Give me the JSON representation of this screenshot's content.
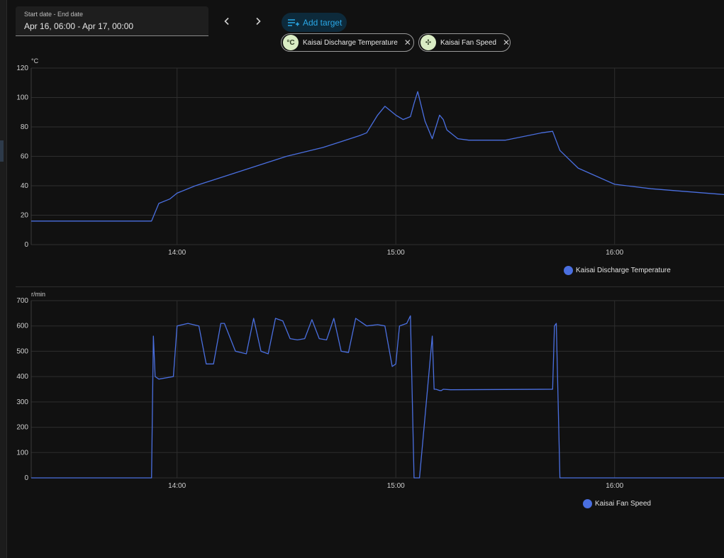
{
  "date_range": {
    "label": "Start date - End date",
    "value": "Apr 16, 06:00 - Apr 17, 00:00"
  },
  "toolbar": {
    "prev_icon": "chevron-left-icon",
    "next_icon": "chevron-right-icon",
    "add_target_label": "Add target"
  },
  "targets": [
    {
      "icon": "thermometer-celsius-icon",
      "icon_text": "°C",
      "label": "Kaisai Discharge Temperature"
    },
    {
      "icon": "fan-icon",
      "icon_text": "✣",
      "label": "Kaisai Fan Speed"
    }
  ],
  "colors": {
    "series": "#4a6fe0",
    "accent": "#2aa7e6",
    "chip_icon_bg": "#d9ecc4"
  },
  "chart_data": [
    {
      "type": "line",
      "unit": "°C",
      "ylim": [
        0,
        120
      ],
      "yticks": [
        0,
        20,
        40,
        60,
        80,
        100,
        120
      ],
      "xlim": [
        "13:20",
        "16:30"
      ],
      "xticks": [
        "14:00",
        "15:00",
        "16:00"
      ],
      "grid": true,
      "legend": "bottom-right",
      "series": [
        {
          "name": "Kaisai Discharge Temperature",
          "x": [
            "13:20",
            "13:53",
            "13:55",
            "13:58",
            "14:00",
            "14:05",
            "14:10",
            "14:20",
            "14:30",
            "14:40",
            "14:45",
            "14:50",
            "14:52",
            "14:55",
            "14:57",
            "15:00",
            "15:02",
            "15:04",
            "15:05",
            "15:06",
            "15:08",
            "15:10",
            "15:12",
            "15:13",
            "15:14",
            "15:17",
            "15:20",
            "15:30",
            "15:40",
            "15:43",
            "15:45",
            "15:50",
            "16:00",
            "16:10",
            "16:20",
            "16:30"
          ],
          "values": [
            16,
            16,
            28,
            31,
            35,
            40,
            44,
            52,
            60,
            66,
            70,
            74,
            76,
            88,
            94,
            88,
            85,
            87,
            96,
            104,
            84,
            72,
            88,
            85,
            78,
            72,
            71,
            71,
            76,
            77,
            64,
            52,
            41,
            38,
            36,
            34
          ]
        }
      ]
    },
    {
      "type": "line",
      "unit": "r/min",
      "ylim": [
        0,
        700
      ],
      "yticks": [
        0,
        100,
        200,
        300,
        400,
        500,
        600,
        700
      ],
      "xlim": [
        "13:20",
        "16:30"
      ],
      "xticks": [
        "14:00",
        "15:00",
        "16:00"
      ],
      "grid": true,
      "legend": "bottom-right",
      "series": [
        {
          "name": "Kaisai Fan Speed",
          "x": [
            "13:20",
            "13:53",
            "13:53.5",
            "13:54",
            "13:55",
            "13:59",
            "14:00",
            "14:03",
            "14:06",
            "14:08",
            "14:10",
            "14:12",
            "14:13",
            "14:16",
            "14:19",
            "14:21",
            "14:23",
            "14:25",
            "14:27",
            "14:29",
            "14:31",
            "14:33",
            "14:35",
            "14:37",
            "14:39",
            "14:41",
            "14:43",
            "14:45",
            "14:47",
            "14:49",
            "14:52",
            "14:55",
            "14:57",
            "14:59",
            "15:00",
            "15:01",
            "15:03",
            "15:04",
            "15:05",
            "15:06",
            "15:06.5",
            "15:10",
            "15:10.5",
            "15:11",
            "15:12",
            "15:12.5",
            "15:13",
            "15:15",
            "15:43",
            "15:43.5",
            "15:44",
            "15:45",
            "16:30"
          ],
          "values": [
            0,
            0,
            560,
            400,
            390,
            400,
            600,
            610,
            600,
            450,
            450,
            610,
            610,
            500,
            490,
            630,
            500,
            490,
            630,
            620,
            550,
            545,
            550,
            625,
            550,
            545,
            630,
            500,
            495,
            630,
            600,
            605,
            600,
            440,
            450,
            600,
            610,
            640,
            0,
            0,
            0,
            560,
            350,
            350,
            345,
            345,
            350,
            348,
            350,
            600,
            610,
            0,
            0
          ]
        }
      ]
    }
  ],
  "chart_text": {
    "temp_unit": "°C",
    "fan_unit": "r/min",
    "temp_legend": "Kaisai Discharge Temperature",
    "fan_legend": "Kaisai Fan Speed"
  }
}
